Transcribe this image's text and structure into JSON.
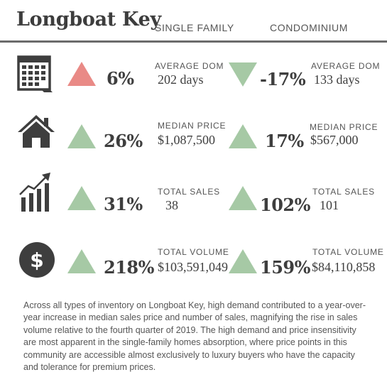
{
  "header": {
    "title": "Longboat Key",
    "col_single_family": "SINGLE FAMILY",
    "col_condominium": "CONDOMINIUM"
  },
  "rows": [
    {
      "icon": "calendar-icon",
      "label": "AVERAGE DOM",
      "single_family": {
        "direction": "up",
        "color": "#e98a86",
        "change": "6%",
        "value": "202 days"
      },
      "condominium": {
        "direction": "down",
        "color": "#a6c9a5",
        "change": "-17%",
        "value": "133 days"
      }
    },
    {
      "icon": "house-icon",
      "label": "MEDIAN PRICE",
      "single_family": {
        "direction": "up",
        "color": "#a6c9a5",
        "change": "26%",
        "value": "$1,087,500"
      },
      "condominium": {
        "direction": "up",
        "color": "#a6c9a5",
        "change": "17%",
        "value": "$567,000"
      }
    },
    {
      "icon": "bar-chart-growth-icon",
      "label": "TOTAL SALES",
      "single_family": {
        "direction": "up",
        "color": "#a6c9a5",
        "change": "31%",
        "value": "38"
      },
      "condominium": {
        "direction": "up",
        "color": "#a6c9a5",
        "change": "102%",
        "value": "101"
      }
    },
    {
      "icon": "dollar-circle-icon",
      "label": "TOTAL VOLUME",
      "single_family": {
        "direction": "up",
        "color": "#a6c9a5",
        "change": "218%",
        "value": "$103,591,049"
      },
      "condominium": {
        "direction": "up",
        "color": "#a6c9a5",
        "change": "159%",
        "value": "$84,110,858"
      }
    }
  ],
  "summary": "Across all types of inventory on Longboat Key, high demand contributed to a year-over-year increase in median sales price and number of sales, magnifying the rise in sales volume relative to the fourth quarter of 2019. The high demand and price insensitivity are most apparent in the single-family homes absorption, where price points in this community are accessible almost exclusively to luxury buyers who have the capacity and tolerance for premium prices."
}
